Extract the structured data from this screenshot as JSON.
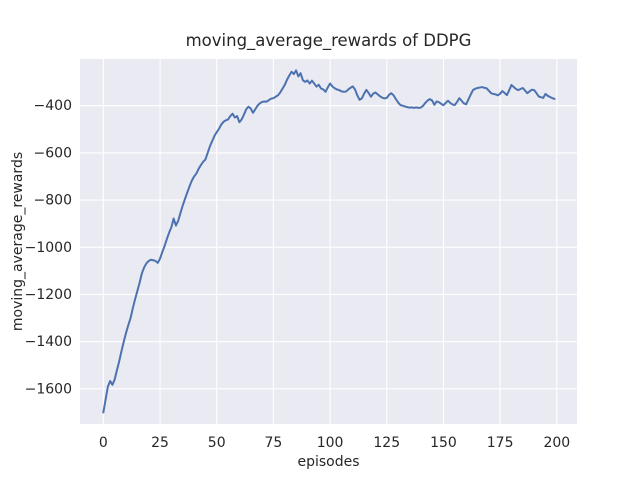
{
  "chart_data": {
    "type": "line",
    "title": "moving_average_rewards of DDPG",
    "xlabel": "episodes",
    "ylabel": "moving_average_rewards",
    "xlim": [
      -10.3,
      208.9
    ],
    "ylim": [
      -1749,
      -202
    ],
    "xticks": [
      0,
      25,
      50,
      75,
      100,
      125,
      150,
      175,
      200
    ],
    "yticks": [
      -400,
      -600,
      -800,
      -1000,
      -1200,
      -1400,
      -1600
    ],
    "grid": true,
    "legend_position": "none",
    "style": {
      "line_color": "#4c72b0",
      "plot_background": "#eaeaf2",
      "grid_color": "#ffffff",
      "text_color": "#262626",
      "figure_background": "#ffffff"
    },
    "series": [
      {
        "name": "moving_average_rewards",
        "points": [
          [
            0,
            -1700
          ],
          [
            1,
            -1645
          ],
          [
            2,
            -1590
          ],
          [
            3,
            -1567
          ],
          [
            4,
            -1583
          ],
          [
            5,
            -1560
          ],
          [
            6,
            -1520
          ],
          [
            7,
            -1483
          ],
          [
            8,
            -1440
          ],
          [
            9,
            -1400
          ],
          [
            10,
            -1363
          ],
          [
            11,
            -1330
          ],
          [
            12,
            -1300
          ],
          [
            13,
            -1258
          ],
          [
            14,
            -1220
          ],
          [
            15,
            -1185
          ],
          [
            16,
            -1150
          ],
          [
            17,
            -1110
          ],
          [
            18,
            -1085
          ],
          [
            19,
            -1068
          ],
          [
            20,
            -1058
          ],
          [
            21,
            -1053
          ],
          [
            22,
            -1055
          ],
          [
            23,
            -1058
          ],
          [
            24,
            -1066
          ],
          [
            25,
            -1048
          ],
          [
            26,
            -1020
          ],
          [
            27,
            -995
          ],
          [
            28,
            -965
          ],
          [
            29,
            -938
          ],
          [
            30,
            -915
          ],
          [
            31,
            -878
          ],
          [
            32,
            -908
          ],
          [
            33,
            -888
          ],
          [
            34,
            -855
          ],
          [
            35,
            -823
          ],
          [
            36,
            -795
          ],
          [
            37,
            -768
          ],
          [
            38,
            -742
          ],
          [
            39,
            -718
          ],
          [
            40,
            -700
          ],
          [
            41,
            -688
          ],
          [
            42,
            -668
          ],
          [
            43,
            -652
          ],
          [
            44,
            -638
          ],
          [
            45,
            -628
          ],
          [
            46,
            -600
          ],
          [
            47,
            -572
          ],
          [
            48,
            -550
          ],
          [
            49,
            -528
          ],
          [
            50,
            -512
          ],
          [
            51,
            -498
          ],
          [
            52,
            -480
          ],
          [
            53,
            -468
          ],
          [
            54,
            -462
          ],
          [
            55,
            -458
          ],
          [
            56,
            -444
          ],
          [
            57,
            -434
          ],
          [
            58,
            -450
          ],
          [
            59,
            -444
          ],
          [
            60,
            -470
          ],
          [
            61,
            -458
          ],
          [
            62,
            -438
          ],
          [
            63,
            -415
          ],
          [
            64,
            -404
          ],
          [
            65,
            -412
          ],
          [
            66,
            -430
          ],
          [
            67,
            -415
          ],
          [
            68,
            -400
          ],
          [
            69,
            -390
          ],
          [
            70,
            -384
          ],
          [
            71,
            -382
          ],
          [
            72,
            -383
          ],
          [
            73,
            -376
          ],
          [
            74,
            -370
          ],
          [
            75,
            -368
          ],
          [
            76,
            -362
          ],
          [
            77,
            -356
          ],
          [
            78,
            -344
          ],
          [
            79,
            -328
          ],
          [
            80,
            -312
          ],
          [
            81,
            -290
          ],
          [
            82,
            -272
          ],
          [
            83,
            -256
          ],
          [
            84,
            -266
          ],
          [
            85,
            -250
          ],
          [
            86,
            -276
          ],
          [
            87,
            -262
          ],
          [
            88,
            -292
          ],
          [
            89,
            -299
          ],
          [
            90,
            -293
          ],
          [
            91,
            -306
          ],
          [
            92,
            -294
          ],
          [
            93,
            -306
          ],
          [
            94,
            -319
          ],
          [
            95,
            -311
          ],
          [
            96,
            -327
          ],
          [
            97,
            -331
          ],
          [
            98,
            -341
          ],
          [
            99,
            -322
          ],
          [
            100,
            -306
          ],
          [
            101,
            -318
          ],
          [
            102,
            -326
          ],
          [
            103,
            -331
          ],
          [
            104,
            -334
          ],
          [
            105,
            -339
          ],
          [
            106,
            -341
          ],
          [
            107,
            -340
          ],
          [
            108,
            -331
          ],
          [
            109,
            -324
          ],
          [
            110,
            -318
          ],
          [
            111,
            -331
          ],
          [
            112,
            -356
          ],
          [
            113,
            -375
          ],
          [
            114,
            -369
          ],
          [
            115,
            -349
          ],
          [
            116,
            -333
          ],
          [
            117,
            -346
          ],
          [
            118,
            -362
          ],
          [
            119,
            -349
          ],
          [
            120,
            -344
          ],
          [
            121,
            -352
          ],
          [
            122,
            -360
          ],
          [
            123,
            -366
          ],
          [
            124,
            -369
          ],
          [
            125,
            -367
          ],
          [
            126,
            -354
          ],
          [
            127,
            -347
          ],
          [
            128,
            -356
          ],
          [
            129,
            -372
          ],
          [
            130,
            -386
          ],
          [
            131,
            -397
          ],
          [
            132,
            -400
          ],
          [
            133,
            -403
          ],
          [
            134,
            -406
          ],
          [
            135,
            -408
          ],
          [
            136,
            -407
          ],
          [
            137,
            -409
          ],
          [
            138,
            -407
          ],
          [
            139,
            -409
          ],
          [
            140,
            -408
          ],
          [
            141,
            -400
          ],
          [
            142,
            -388
          ],
          [
            143,
            -378
          ],
          [
            144,
            -372
          ],
          [
            145,
            -378
          ],
          [
            146,
            -396
          ],
          [
            147,
            -382
          ],
          [
            148,
            -385
          ],
          [
            149,
            -392
          ],
          [
            150,
            -398
          ],
          [
            151,
            -388
          ],
          [
            152,
            -379
          ],
          [
            153,
            -388
          ],
          [
            154,
            -395
          ],
          [
            155,
            -397
          ],
          [
            156,
            -384
          ],
          [
            157,
            -368
          ],
          [
            158,
            -379
          ],
          [
            159,
            -390
          ],
          [
            160,
            -394
          ],
          [
            161,
            -374
          ],
          [
            162,
            -353
          ],
          [
            163,
            -334
          ],
          [
            164,
            -328
          ],
          [
            165,
            -325
          ],
          [
            166,
            -323
          ],
          [
            167,
            -321
          ],
          [
            168,
            -324
          ],
          [
            169,
            -326
          ],
          [
            170,
            -336
          ],
          [
            171,
            -347
          ],
          [
            172,
            -350
          ],
          [
            173,
            -352
          ],
          [
            174,
            -356
          ],
          [
            175,
            -349
          ],
          [
            176,
            -338
          ],
          [
            177,
            -346
          ],
          [
            178,
            -355
          ],
          [
            179,
            -334
          ],
          [
            180,
            -312
          ],
          [
            181,
            -321
          ],
          [
            182,
            -329
          ],
          [
            183,
            -334
          ],
          [
            184,
            -329
          ],
          [
            185,
            -325
          ],
          [
            186,
            -336
          ],
          [
            187,
            -347
          ],
          [
            188,
            -339
          ],
          [
            189,
            -332
          ],
          [
            190,
            -334
          ],
          [
            191,
            -346
          ],
          [
            192,
            -361
          ],
          [
            193,
            -364
          ],
          [
            194,
            -367
          ],
          [
            195,
            -350
          ],
          [
            196,
            -358
          ],
          [
            197,
            -363
          ],
          [
            198,
            -368
          ],
          [
            199,
            -371
          ]
        ]
      }
    ]
  }
}
